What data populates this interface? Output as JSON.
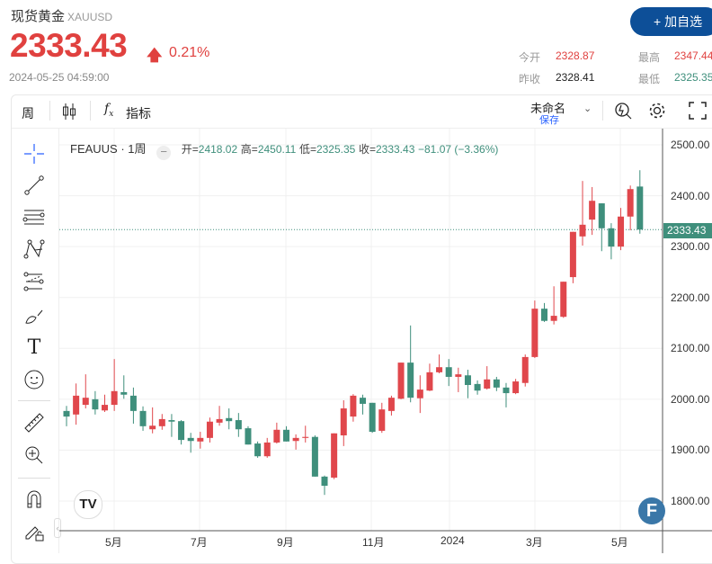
{
  "header": {
    "name": "现货黄金",
    "symbol": "XAUUSD",
    "price": "2333.43",
    "change_pct": "0.21%",
    "arrow": "up",
    "timestamp": "2024-05-25 04:59:00",
    "add_button": "+ 加自选",
    "stats": {
      "open_label": "今开",
      "open": "2328.87",
      "prev_close_label": "昨收",
      "prev_close": "2328.41",
      "high_label": "最高",
      "high": "2347.44",
      "low_label": "最低",
      "low": "2325.35"
    }
  },
  "toolbar": {
    "interval": "周",
    "indicators": "指标",
    "layout_name": "未命名",
    "save": "保存"
  },
  "legend": {
    "symbol": "FEAUUS · 1周",
    "open_label": "开=",
    "open": "2418.02",
    "high_label": "高=",
    "high": "2450.11",
    "low_label": "低=",
    "low": "2325.35",
    "close_label": "收=",
    "close": "2333.43",
    "change": "−81.07 (−3.36%)"
  },
  "current_price_badge": "2333.43",
  "colors": {
    "up": "#e0474c",
    "down": "#3f8f7c",
    "brand": "#0d4f98",
    "price": "#e0413f"
  },
  "chart_data": {
    "type": "candlestick",
    "ylim": [
      1780,
      2520
    ],
    "y_ticks": [
      "2500.00",
      "2400.00",
      "2300.00",
      "2200.00",
      "2100.00",
      "2000.00",
      "1900.00",
      "1800.00"
    ],
    "x_ticks": [
      "5月",
      "7月",
      "9月",
      "11月",
      "2024",
      "3月",
      "5月"
    ],
    "grid": true,
    "ohlc": [
      [
        1977,
        1987,
        1947,
        1966
      ],
      [
        1970,
        2031,
        1950,
        2007
      ],
      [
        1989,
        2049,
        1982,
        2003
      ],
      [
        2000,
        2016,
        1970,
        1980
      ],
      [
        1978,
        2009,
        1975,
        1989
      ],
      [
        1989,
        2079,
        1977,
        2016
      ],
      [
        2014,
        2047,
        2001,
        2009
      ],
      [
        2007,
        2023,
        1952,
        1977
      ],
      [
        1977,
        1986,
        1938,
        1947
      ],
      [
        1941,
        1984,
        1933,
        1948
      ],
      [
        1947,
        1971,
        1940,
        1961
      ],
      [
        1959,
        1971,
        1926,
        1956
      ],
      [
        1957,
        1959,
        1911,
        1920
      ],
      [
        1924,
        1934,
        1895,
        1918
      ],
      [
        1917,
        1936,
        1903,
        1924
      ],
      [
        1924,
        1964,
        1915,
        1956
      ],
      [
        1954,
        1987,
        1948,
        1961
      ],
      [
        1963,
        1982,
        1941,
        1957
      ],
      [
        1959,
        1973,
        1926,
        1941
      ],
      [
        1943,
        1947,
        1911,
        1911
      ],
      [
        1913,
        1917,
        1885,
        1888
      ],
      [
        1888,
        1924,
        1885,
        1915
      ],
      [
        1915,
        1954,
        1913,
        1940
      ],
      [
        1940,
        1947,
        1917,
        1917
      ],
      [
        1918,
        1931,
        1901,
        1924
      ],
      [
        1924,
        1948,
        1915,
        1926
      ],
      [
        1926,
        1929,
        1848,
        1848
      ],
      [
        1848,
        1850,
        1812,
        1830
      ],
      [
        1846,
        1933,
        1843,
        1933
      ],
      [
        1929,
        1998,
        1908,
        1982
      ],
      [
        1966,
        2010,
        1956,
        2007
      ],
      [
        2003,
        2009,
        1970,
        1991
      ],
      [
        1993,
        1993,
        1934,
        1936
      ],
      [
        1938,
        1993,
        1934,
        1980
      ],
      [
        1977,
        2007,
        1968,
        2003
      ],
      [
        2001,
        2072,
        2000,
        2072
      ],
      [
        2072,
        2145,
        1994,
        2003
      ],
      [
        2002,
        2047,
        1973,
        2019
      ],
      [
        2017,
        2070,
        2016,
        2053
      ],
      [
        2053,
        2088,
        2051,
        2063
      ],
      [
        2063,
        2079,
        2026,
        2044
      ],
      [
        2044,
        2062,
        2014,
        2049
      ],
      [
        2047,
        2058,
        2002,
        2028
      ],
      [
        2030,
        2037,
        2009,
        2017
      ],
      [
        2021,
        2065,
        2019,
        2039
      ],
      [
        2039,
        2044,
        2016,
        2023
      ],
      [
        2023,
        2032,
        1984,
        2012
      ],
      [
        2012,
        2040,
        2010,
        2035
      ],
      [
        2032,
        2088,
        2025,
        2083
      ],
      [
        2083,
        2194,
        2081,
        2178
      ],
      [
        2178,
        2189,
        2152,
        2154
      ],
      [
        2154,
        2222,
        2147,
        2164
      ],
      [
        2162,
        2231,
        2160,
        2231
      ],
      [
        2240,
        2329,
        2228,
        2329
      ],
      [
        2320,
        2429,
        2302,
        2343
      ],
      [
        2353,
        2417,
        2323,
        2390
      ],
      [
        2385,
        2385,
        2291,
        2336
      ],
      [
        2336,
        2346,
        2275,
        2300
      ],
      [
        2300,
        2376,
        2293,
        2359
      ],
      [
        2359,
        2420,
        2332,
        2413
      ],
      [
        2418.02,
        2450.11,
        2325.35,
        2333.43
      ]
    ],
    "last_price": 2333.43
  }
}
